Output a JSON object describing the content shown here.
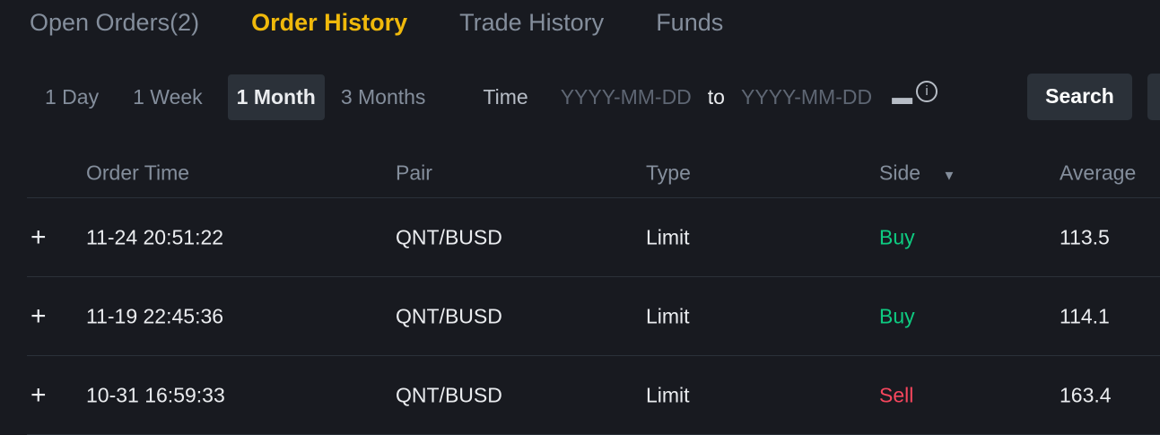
{
  "tabs": [
    "Open Orders(2)",
    "Order History",
    "Trade History",
    "Funds"
  ],
  "active_tab": "Order History",
  "periods": [
    "1 Day",
    "1 Week",
    "1 Month",
    "3 Months"
  ],
  "active_period": "1 Month",
  "time_label": "Time",
  "date_from_placeholder": "YYYY-MM-DD",
  "to_label": "to",
  "date_to_placeholder": "YYYY-MM-DD",
  "search_label": "Search",
  "columns": [
    "Order Time",
    "Pair",
    "Type",
    "Side",
    "Average"
  ],
  "rows": [
    {
      "time": "11-24 20:51:22",
      "pair": "QNT/BUSD",
      "type": "Limit",
      "side": "Buy",
      "average": "113.5"
    },
    {
      "time": "11-19 22:45:36",
      "pair": "QNT/BUSD",
      "type": "Limit",
      "side": "Buy",
      "average": "114.1"
    },
    {
      "time": "10-31 16:59:33",
      "pair": "QNT/BUSD",
      "type": "Limit",
      "side": "Sell",
      "average": "163.4"
    }
  ],
  "colors": {
    "accent": "#f0b90b",
    "buy": "#0ecb81",
    "sell": "#f6465d",
    "background": "#181a20"
  }
}
